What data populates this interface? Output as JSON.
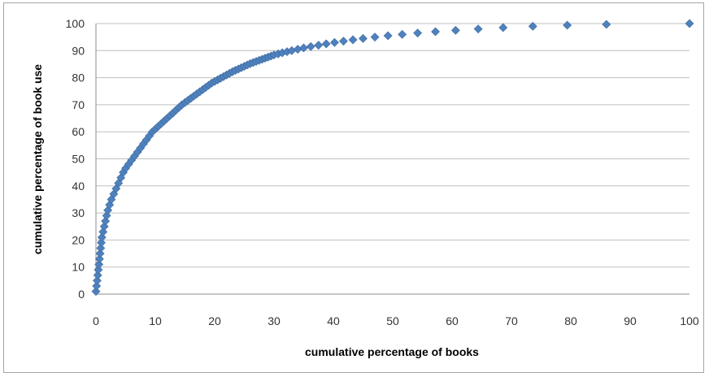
{
  "chart_data": {
    "type": "scatter",
    "title": "",
    "xlabel": "cumulative percentage of books",
    "ylabel": "cumulative percentage of book use",
    "xlim": [
      0,
      100
    ],
    "ylim": [
      0,
      100
    ],
    "xticks": [
      "0",
      "10",
      "20",
      "30",
      "40",
      "50",
      "60",
      "70",
      "80",
      "90",
      "100"
    ],
    "yticks": [
      "0",
      "10",
      "20",
      "30",
      "40",
      "50",
      "60",
      "70",
      "80",
      "90",
      "100"
    ],
    "grid": "horizontal",
    "legend": "none",
    "marker": "diamond",
    "series_color": "#4f81bd",
    "x": [
      0,
      0.1,
      0.2,
      0.3,
      0.4,
      0.5,
      0.6,
      0.7,
      0.8,
      0.9,
      1.0,
      1.2,
      1.4,
      1.6,
      1.8,
      2.0,
      2.3,
      2.6,
      3.0,
      3.4,
      3.8,
      4.2,
      4.6,
      5.0,
      5.5,
      6.0,
      6.5,
      7.0,
      7.5,
      8.0,
      8.5,
      9.0,
      9.5,
      10,
      10.5,
      11,
      11.5,
      12,
      12.5,
      13,
      13.5,
      14,
      14.5,
      15,
      15.5,
      16,
      16.5,
      17,
      17.5,
      18,
      18.5,
      19,
      19.5,
      20,
      20.5,
      21,
      21.5,
      22,
      22.5,
      23,
      23.5,
      24,
      24.5,
      25,
      25.5,
      26,
      26.5,
      27,
      27.5,
      28,
      28.5,
      29,
      29.5,
      30,
      30.7,
      31.4,
      32.2,
      33.0,
      34.0,
      35.0,
      36.2,
      37.5,
      38.8,
      40.2,
      41.7,
      43.3,
      45.0,
      47.0,
      49.2,
      51.6,
      54.2,
      57.2,
      60.6,
      64.4,
      68.6,
      73.6,
      79.4,
      86.0,
      100
    ],
    "y": [
      1,
      3,
      5,
      7,
      9,
      11,
      13,
      15,
      17,
      19,
      21,
      23,
      25,
      27,
      29,
      31,
      33,
      35,
      37,
      39,
      41,
      43,
      45,
      46.5,
      48,
      49.5,
      51,
      52.5,
      54,
      55.5,
      57,
      58.5,
      60,
      61,
      62,
      63,
      64,
      65,
      66,
      67,
      68,
      69,
      70,
      70.8,
      71.6,
      72.4,
      73.2,
      74,
      74.8,
      75.6,
      76.4,
      77.2,
      78,
      78.6,
      79.2,
      79.8,
      80.4,
      81,
      81.6,
      82.2,
      82.7,
      83.2,
      83.7,
      84.2,
      84.7,
      85.2,
      85.6,
      86,
      86.4,
      86.8,
      87.2,
      87.6,
      88,
      88.4,
      88.8,
      89.2,
      89.6,
      90,
      90.5,
      91,
      91.5,
      92,
      92.5,
      93,
      93.5,
      94,
      94.5,
      95,
      95.5,
      96,
      96.5,
      97,
      97.5,
      98,
      98.5,
      99,
      99.4,
      99.7,
      100
    ]
  }
}
